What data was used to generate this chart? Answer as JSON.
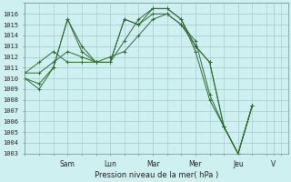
{
  "xlabel": "Pression niveau de la mer( hPa )",
  "bg_color": "#cff0f0",
  "grid_color": "#a0c8c8",
  "line_color": "#2d6b2d",
  "ylim": [
    1003,
    1017
  ],
  "yticks": [
    1003,
    1004,
    1005,
    1006,
    1007,
    1008,
    1009,
    1010,
    1011,
    1012,
    1013,
    1014,
    1015,
    1016
  ],
  "day_labels": [
    "Sam",
    "Lun",
    "Mar",
    "Mer",
    "Jeu",
    "V"
  ],
  "day_positions": [
    24,
    48,
    72,
    96,
    120,
    140
  ],
  "xlim": [
    0,
    148
  ],
  "series": [
    [
      0,
      1010.0,
      8,
      1009.0,
      16,
      1011.0,
      24,
      1015.5,
      32,
      1013.0,
      40,
      1011.5,
      48,
      1011.5,
      56,
      1015.5,
      64,
      1015.0,
      72,
      1016.5,
      80,
      1016.5,
      88,
      1015.5,
      96,
      1013.0,
      104,
      1011.5,
      112,
      1005.5,
      120,
      1003.0,
      128,
      1007.5
    ],
    [
      0,
      1010.0,
      8,
      1009.5,
      16,
      1011.0,
      24,
      1015.5,
      32,
      1012.5,
      40,
      1011.5,
      48,
      1011.5,
      56,
      1015.5,
      64,
      1015.0,
      72,
      1016.0,
      80,
      1016.0,
      88,
      1015.0,
      96,
      1013.0,
      104,
      1011.5,
      112,
      1005.5,
      120,
      1003.0,
      128,
      1007.5
    ],
    [
      0,
      1010.5,
      8,
      1010.5,
      16,
      1011.5,
      24,
      1012.5,
      32,
      1012.0,
      40,
      1011.5,
      48,
      1011.5,
      56,
      1013.5,
      64,
      1015.5,
      72,
      1016.5,
      80,
      1016.5,
      88,
      1015.5,
      96,
      1012.5,
      104,
      1008.0,
      112,
      1005.5,
      120,
      1003.0,
      128,
      1007.5
    ],
    [
      0,
      1010.5,
      8,
      1011.5,
      16,
      1012.5,
      24,
      1011.5,
      32,
      1011.5,
      40,
      1011.5,
      48,
      1012.0,
      56,
      1012.5,
      64,
      1014.0,
      72,
      1015.5,
      80,
      1016.0,
      88,
      1015.0,
      96,
      1013.5,
      104,
      1008.5,
      112,
      1005.5,
      120,
      1003.0,
      128,
      1007.5
    ]
  ]
}
